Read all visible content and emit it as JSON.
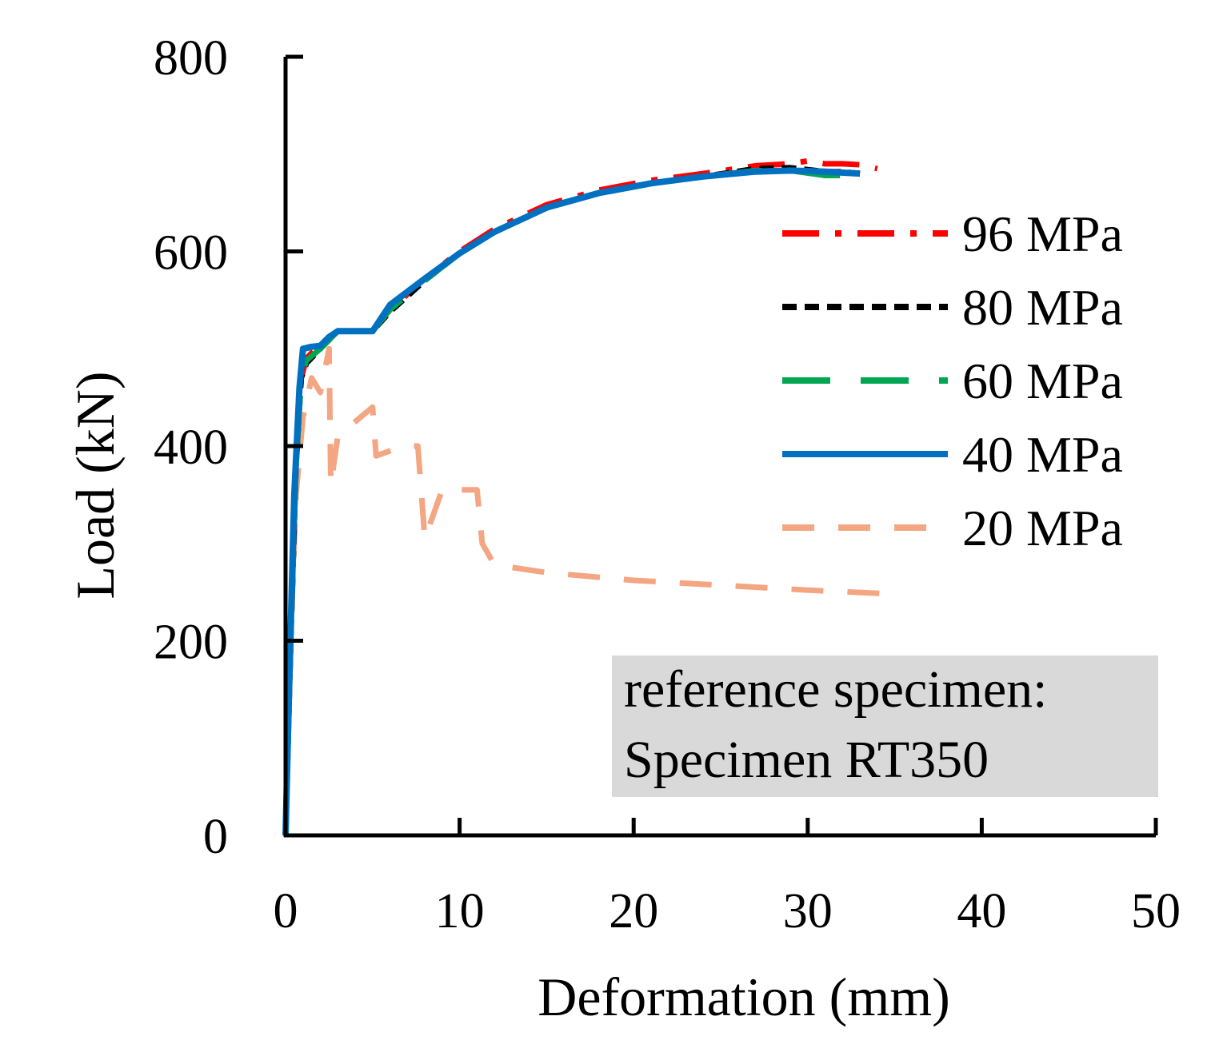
{
  "chart_data": {
    "type": "line",
    "title": "",
    "xlabel": "Deformation (mm)",
    "ylabel": "Load (kN)",
    "xlim": [
      0,
      50
    ],
    "ylim": [
      0,
      800
    ],
    "xticks": [
      0,
      10,
      20,
      30,
      40,
      50
    ],
    "yticks": [
      0,
      200,
      400,
      600,
      800
    ],
    "grid": false,
    "legend_position": "right",
    "annotation": {
      "line1": "reference specimen:",
      "line2": "Specimen RT350",
      "background": "#d9d9d9"
    },
    "series": [
      {
        "name": "96 MPa",
        "color": "#ff0000",
        "dash": "dash-dot",
        "x": [
          0,
          0.3,
          0.6,
          0.9,
          1.2,
          2,
          3,
          4,
          5,
          6,
          8,
          10,
          12,
          15,
          18,
          21,
          24,
          27,
          29,
          30,
          31,
          32,
          33,
          34
        ],
        "y": [
          0,
          200,
          380,
          470,
          490,
          505,
          518,
          518,
          518,
          540,
          572,
          600,
          623,
          648,
          663,
          673,
          680,
          688,
          690,
          693,
          690,
          690,
          689,
          685
        ]
      },
      {
        "name": "80 MPa",
        "color": "#000000",
        "dash": "dashed",
        "x": [
          0,
          0.3,
          0.6,
          0.9,
          1.2,
          2,
          3,
          4,
          5,
          6,
          8,
          10,
          12,
          15,
          18,
          21,
          24,
          27,
          29,
          31,
          32,
          33
        ],
        "y": [
          0,
          200,
          380,
          470,
          485,
          500,
          518,
          518,
          518,
          538,
          570,
          598,
          620,
          645,
          660,
          670,
          677,
          685,
          686,
          682,
          682,
          680
        ]
      },
      {
        "name": "60 MPa",
        "color": "#00a651",
        "dash": "long-dash",
        "x": [
          0,
          0.3,
          0.6,
          0.9,
          1.2,
          2,
          3,
          4,
          5,
          6,
          8,
          10,
          12,
          15,
          18,
          21,
          24,
          27,
          29,
          31,
          32,
          33
        ],
        "y": [
          0,
          200,
          380,
          470,
          488,
          500,
          518,
          518,
          518,
          540,
          570,
          598,
          620,
          645,
          660,
          670,
          677,
          683,
          683,
          678,
          678,
          672
        ]
      },
      {
        "name": "40 MPa",
        "color": "#0070c0",
        "dash": "solid",
        "x": [
          0,
          0.2,
          0.5,
          0.8,
          1,
          1.5,
          2,
          2.5,
          3,
          4,
          5,
          6,
          8,
          10,
          12,
          15,
          18,
          21,
          24,
          27,
          29,
          31,
          33
        ],
        "y": [
          0,
          150,
          350,
          460,
          500,
          502,
          503,
          512,
          518,
          518,
          518,
          545,
          572,
          598,
          620,
          645,
          660,
          670,
          677,
          682,
          683,
          682,
          680
        ]
      },
      {
        "name": "20 MPa",
        "color": "#f4a582",
        "dash": "dashed",
        "x": [
          0,
          0.3,
          0.6,
          1,
          1.5,
          2,
          2.5,
          2.6,
          3,
          4,
          5,
          5.2,
          6,
          7,
          7.6,
          8,
          9,
          10,
          11,
          11.3,
          12,
          15,
          20,
          25,
          30,
          35
        ],
        "y": [
          0,
          200,
          350,
          430,
          470,
          455,
          500,
          360,
          410,
          425,
          440,
          390,
          395,
          400,
          400,
          305,
          355,
          355,
          355,
          300,
          278,
          270,
          262,
          257,
          252,
          248
        ]
      }
    ]
  }
}
